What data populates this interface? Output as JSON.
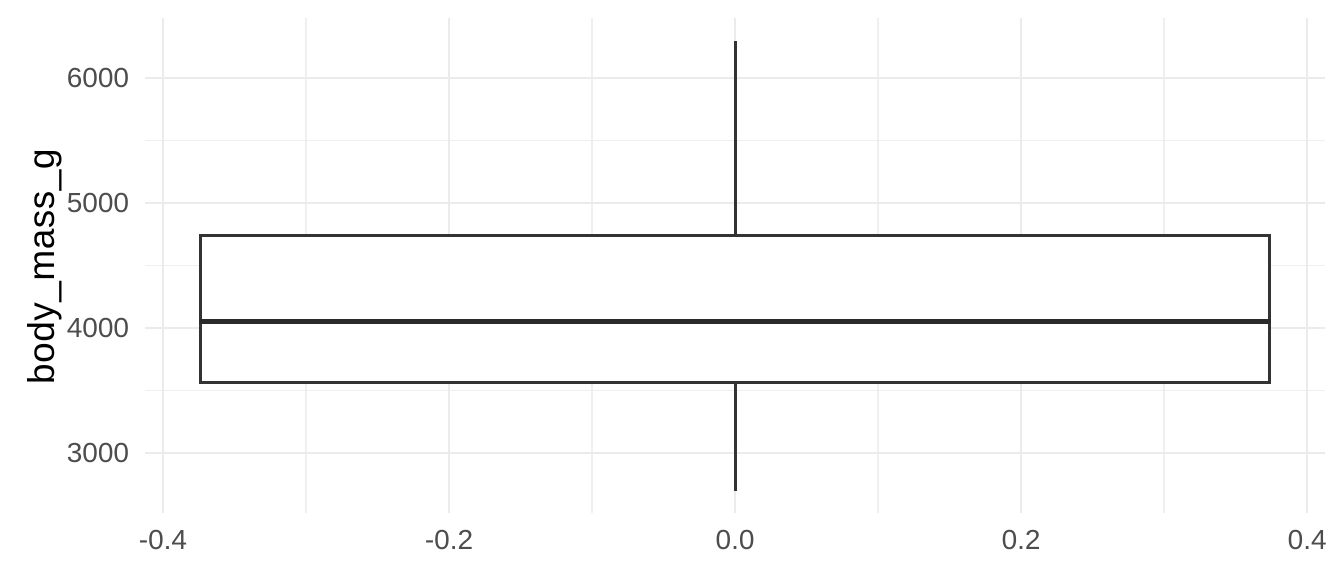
{
  "chart_data": {
    "type": "boxplot",
    "title": "",
    "xlabel": "",
    "ylabel": "body_mass_g",
    "xlim": [
      -0.4125,
      0.4125
    ],
    "ylim": [
      2520,
      6480
    ],
    "grid": "major and minor gridlines, light gray on white (ggplot theme_minimal)",
    "legend": "none",
    "x_major_ticks": [
      {
        "v": -0.4,
        "label": "-0.4"
      },
      {
        "v": -0.2,
        "label": "-0.2"
      },
      {
        "v": 0.0,
        "label": "0.0"
      },
      {
        "v": 0.2,
        "label": "0.2"
      },
      {
        "v": 0.4,
        "label": "0.4"
      }
    ],
    "x_minor_ticks": [
      -0.3,
      -0.1,
      0.1,
      0.3
    ],
    "y_major_ticks": [
      {
        "v": 3000,
        "label": "3000"
      },
      {
        "v": 4000,
        "label": "4000"
      },
      {
        "v": 5000,
        "label": "5000"
      },
      {
        "v": 6000,
        "label": "6000"
      }
    ],
    "y_minor_ticks": [
      3500,
      4500,
      5500
    ],
    "series": [
      {
        "name": "body_mass_g",
        "x_center": 0,
        "box_width": 0.75,
        "whisker_low": 2700,
        "q1": 3550,
        "median": 4050,
        "q3": 4750,
        "whisker_high": 6300,
        "outliers": []
      }
    ],
    "colors": {
      "background": "#FFFFFF",
      "box_stroke": "#333333",
      "box_fill": "#FFFFFF",
      "median": "#2B2B2B",
      "grid_major": "#EBEBEB",
      "grid_minor": "#EFEFEF",
      "axis_text": "#4D4D4D",
      "axis_title": "#000000"
    }
  }
}
